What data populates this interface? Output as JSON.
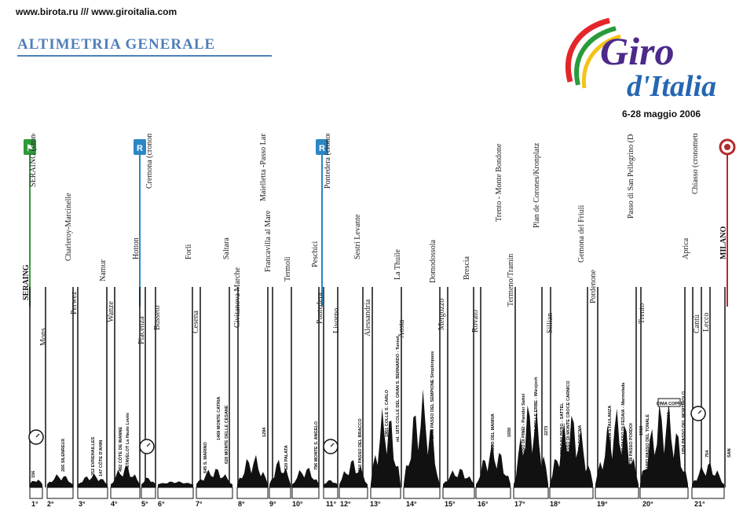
{
  "header": {
    "urls": "www.birota.ru /// www.giroitalia.com",
    "title": "ALTIMETRIA GENERALE",
    "logo": {
      "line1": "Giro",
      "line2": "d'Italia",
      "colors": [
        "#e4262a",
        "#2a9b3a",
        "#f5c318",
        "#4b2a8a",
        "#2466b2"
      ]
    },
    "dates": "6-28 maggio 2006"
  },
  "markers": [
    {
      "name": "start-flag-icon",
      "color": "#2e9a3a"
    },
    {
      "name": "rest-day-icon",
      "label": "R",
      "color": "#2b87c4"
    },
    {
      "name": "rest-day-icon",
      "label": "R",
      "color": "#2b87c4"
    },
    {
      "name": "finish-icon",
      "color": "#b52a2a"
    }
  ],
  "towns": [
    {
      "text": "SERAING",
      "bold": true
    },
    {
      "text": "SERAING (cronometro individuale)"
    },
    {
      "text": "Mons"
    },
    {
      "text": "Charleroy-Marcinelle"
    },
    {
      "text": "Perwez"
    },
    {
      "text": "Namur"
    },
    {
      "text": "Wanze"
    },
    {
      "text": "Hotton"
    },
    {
      "text": "Piacenza"
    },
    {
      "text": "Cremona (cronometro a squadre)"
    },
    {
      "text": "Busseto"
    },
    {
      "text": "Forlì"
    },
    {
      "text": "Cesena"
    },
    {
      "text": "Saltara"
    },
    {
      "text": "Civitanova Marche"
    },
    {
      "text": "Maielletta -Passo Lanciano"
    },
    {
      "text": "Francavilla al Mare"
    },
    {
      "text": "Termoli"
    },
    {
      "text": "Peschici"
    },
    {
      "text": "Pontedera"
    },
    {
      "text": "Pontedera (cronometro individuale)"
    },
    {
      "text": "Livorno"
    },
    {
      "text": "Sestri Levante"
    },
    {
      "text": "Alessandria"
    },
    {
      "text": "La Thuile"
    },
    {
      "text": "Aosta"
    },
    {
      "text": "Domodossola"
    },
    {
      "text": "Mergozzo"
    },
    {
      "text": "Brescia"
    },
    {
      "text": "Rovato"
    },
    {
      "text": "Trento - Monte Bondone"
    },
    {
      "text": "Termeno/Tramin"
    },
    {
      "text": "Plan de Corones/Kronplatz"
    },
    {
      "text": "Sillian"
    },
    {
      "text": "Gemona del Friuli"
    },
    {
      "text": "Pordenone"
    },
    {
      "text": "Passo di San Pellegrino (Dolomiti Stars)"
    },
    {
      "text": "Trento"
    },
    {
      "text": "Aprica"
    },
    {
      "text": "Chiasso (cronometro individuale)"
    },
    {
      "text": "Cantù"
    },
    {
      "text": "Lecco"
    },
    {
      "text": "MILANO",
      "bold": true
    }
  ],
  "climbs": [
    {
      "text": "156"
    },
    {
      "text": "266  SILENREUX"
    },
    {
      "text": "252  EVREHAILLES"
    },
    {
      "text": "147  CÔTE D'AHIN"
    },
    {
      "text": "492  CÔTE DE WANNE"
    },
    {
      "text": "504  STAVELOT  La Haute Levée"
    },
    {
      "text": "645  S. MARINO"
    },
    {
      "text": "1469  MONTE CATRIA"
    },
    {
      "text": "628  MONTE DELLE CESANE"
    },
    {
      "text": "1294"
    },
    {
      "text": "520  PALATA"
    },
    {
      "text": "796  MONTE S. ANGELO"
    },
    {
      "text": "610  PASSO DEL BRACCO"
    },
    {
      "text": "1951  COLLE S. CARLO"
    },
    {
      "text": "ml. 1875  COLLE DEL GRAN S. BERNARDO - Tunnel"
    },
    {
      "text": "2005  PASSO DEL SEMPIONE  Simplonpass"
    },
    {
      "text": "1664  PASSO DEL MANIVA"
    },
    {
      "text": "1650"
    },
    {
      "text": "1442  PASSO DI PINEI - Panider Sattel"
    },
    {
      "text": "1987  PASSO DELLE ERBE - Würzjoch"
    },
    {
      "text": "2273"
    },
    {
      "text": "963  GAILBERG - SATTEL"
    },
    {
      "text": "1360  PASSO DI MONTE CROCE CARNICO"
    },
    {
      "text": "884  CIEL DI FORCNA"
    },
    {
      "text": "1773  FORCELLA STAULANZA"
    },
    {
      "text": "2057  PASSO DI FEDAIA - Marmolada"
    },
    {
      "text": "2239  PASSO PORDOI"
    },
    {
      "text": "1918"
    },
    {
      "text": "1883  PASSO DEL TONALE"
    },
    {
      "text": "2618  PASSO DI GAVIA"
    },
    {
      "text": "CIMA COPPI"
    },
    {
      "text": "1854  PASSO DEL MORTIROLO"
    },
    {
      "text": "754"
    }
  ],
  "stages": [
    "1°",
    "2°",
    "3°",
    "4°",
    "5°",
    "6°",
    "7°",
    "8°",
    "9°",
    "10°",
    "11°",
    "12°",
    "13°",
    "14°",
    "15°",
    "16°",
    "17°",
    "18°",
    "19°",
    "20°",
    "21°"
  ],
  "footer": {
    "scale": "SAN"
  }
}
